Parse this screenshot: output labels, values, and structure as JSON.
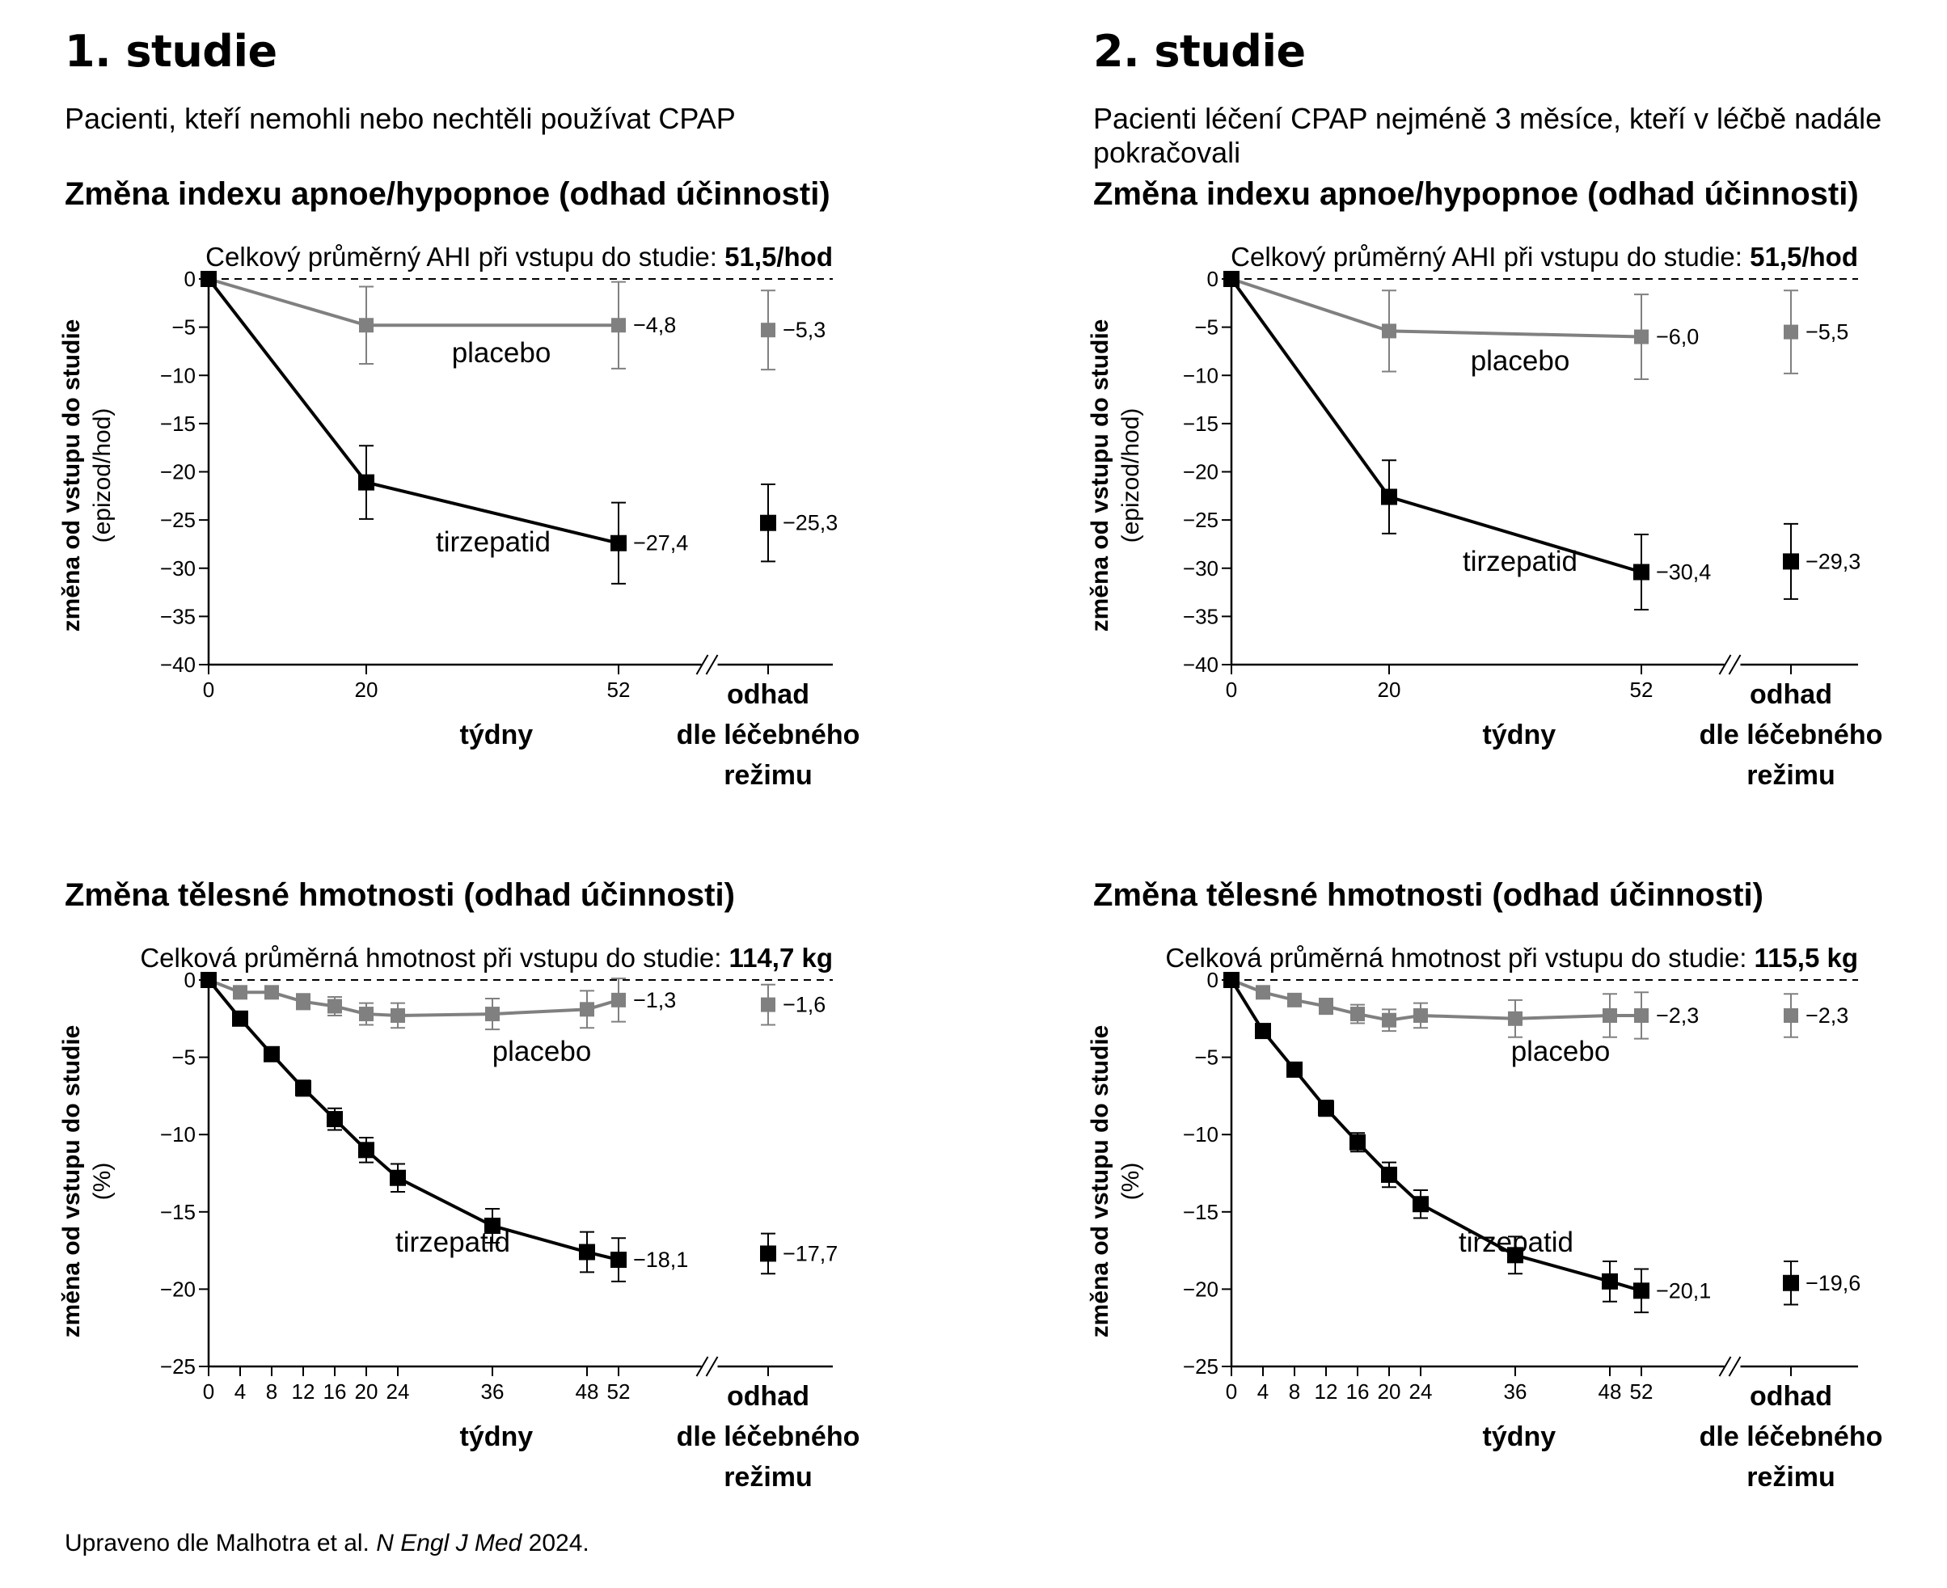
{
  "studies": [
    {
      "title": "1. studie",
      "subtitle": "Pacienti, kteří nemohli nebo nechtěli používat CPAP"
    },
    {
      "title": "2. studie",
      "subtitle": "Pacienti léčení CPAP nejméně 3 měsíce, kteří v léčbě nadále pokračovali"
    }
  ],
  "ahi_title": "Změna indexu apnoe/hypopnoe (odhad účinnosti)",
  "weight_title": "Změna tělesné hmotnosti (odhad účinnosti)",
  "ylabel_main": "změna od vstupu do studie",
  "ahi_unit": "(epizod/hod)",
  "weight_unit": "(%)",
  "footnote": {
    "prefix": "Upraveno dle Malhotra et al.",
    "journal": "N Engl J Med",
    "year": "2024."
  },
  "colors": {
    "tirzepatide": "#000000",
    "placebo": "#808080"
  },
  "chart_data": [
    {
      "type": "line",
      "baseline_label": "Celkový průměrný AHI při vstupu do studie:",
      "baseline_value": "51,5/hod",
      "xlabel": "týdny",
      "estimand_label": [
        "odhad",
        "dle léčebného",
        "režimu"
      ],
      "ylim": [
        -40,
        0
      ],
      "yticks": [
        0,
        -5,
        -10,
        -15,
        -20,
        -25,
        -30,
        -35,
        -40
      ],
      "xticks": [
        0,
        20,
        52
      ],
      "series": [
        {
          "name": "placebo",
          "x": [
            0,
            20,
            52
          ],
          "y": [
            0,
            -4.8,
            -4.8
          ],
          "err": [
            0,
            4.0,
            4.5
          ],
          "end_label": "−4,8",
          "estimand": {
            "y": -5.3,
            "err": 4.1,
            "label": "−5,3"
          }
        },
        {
          "name": "tirzepatid",
          "x": [
            0,
            20,
            52
          ],
          "y": [
            0,
            -21.1,
            -27.4
          ],
          "err": [
            0,
            3.8,
            4.2
          ],
          "end_label": "−27,4",
          "estimand": {
            "y": -25.3,
            "err": 4.0,
            "label": "−25,3"
          }
        }
      ]
    },
    {
      "type": "line",
      "baseline_label": "Celkový průměrný AHI při vstupu do studie:",
      "baseline_value": "51,5/hod",
      "xlabel": "týdny",
      "estimand_label": [
        "odhad",
        "dle léčebného",
        "režimu"
      ],
      "ylim": [
        -40,
        0
      ],
      "yticks": [
        0,
        -5,
        -10,
        -15,
        -20,
        -25,
        -30,
        -35,
        -40
      ],
      "xticks": [
        0,
        20,
        52
      ],
      "series": [
        {
          "name": "placebo",
          "x": [
            0,
            20,
            52
          ],
          "y": [
            0,
            -5.4,
            -6.0
          ],
          "err": [
            0,
            4.2,
            4.4
          ],
          "end_label": "−6,0",
          "estimand": {
            "y": -5.5,
            "err": 4.3,
            "label": "−5,5"
          }
        },
        {
          "name": "tirzepatid",
          "x": [
            0,
            20,
            52
          ],
          "y": [
            0,
            -22.6,
            -30.4
          ],
          "err": [
            0,
            3.8,
            3.9
          ],
          "end_label": "−30,4",
          "estimand": {
            "y": -29.3,
            "err": 3.9,
            "label": "−29,3"
          }
        }
      ]
    },
    {
      "type": "line",
      "baseline_label": "Celková průměrná hmotnost při vstupu do studie:",
      "baseline_value": "114,7 kg",
      "xlabel": "týdny",
      "estimand_label": [
        "odhad",
        "dle léčebného",
        "režimu"
      ],
      "ylim": [
        -25,
        0
      ],
      "yticks": [
        0,
        -5,
        -10,
        -15,
        -20,
        -25
      ],
      "xticks": [
        0,
        4,
        8,
        12,
        16,
        20,
        24,
        36,
        48,
        52
      ],
      "series": [
        {
          "name": "placebo",
          "x": [
            0,
            4,
            8,
            12,
            16,
            20,
            24,
            36,
            48,
            52
          ],
          "y": [
            0,
            -0.8,
            -0.8,
            -1.4,
            -1.7,
            -2.2,
            -2.3,
            -2.2,
            -1.9,
            -1.3
          ],
          "err": [
            0,
            0.4,
            0.4,
            0.5,
            0.6,
            0.7,
            0.8,
            1.0,
            1.2,
            1.4
          ],
          "end_label": "−1,3",
          "estimand": {
            "y": -1.6,
            "err": 1.3,
            "label": "−1,6"
          }
        },
        {
          "name": "tirzepatid",
          "x": [
            0,
            4,
            8,
            12,
            16,
            20,
            24,
            36,
            48,
            52
          ],
          "y": [
            0,
            -2.5,
            -4.8,
            -7.0,
            -9.0,
            -11.0,
            -12.8,
            -15.9,
            -17.6,
            -18.1
          ],
          "err": [
            0,
            0.3,
            0.4,
            0.5,
            0.7,
            0.8,
            0.9,
            1.1,
            1.3,
            1.4
          ],
          "end_label": "−18,1",
          "estimand": {
            "y": -17.7,
            "err": 1.3,
            "label": "−17,7"
          }
        }
      ]
    },
    {
      "type": "line",
      "baseline_label": "Celková průměrná hmotnost při vstupu do studie:",
      "baseline_value": "115,5 kg",
      "xlabel": "týdny",
      "estimand_label": [
        "odhad",
        "dle léčebného",
        "režimu"
      ],
      "ylim": [
        -25,
        0
      ],
      "yticks": [
        0,
        -5,
        -10,
        -15,
        -20,
        -25
      ],
      "xticks": [
        0,
        4,
        8,
        12,
        16,
        20,
        24,
        36,
        48,
        52
      ],
      "series": [
        {
          "name": "placebo",
          "x": [
            0,
            4,
            8,
            12,
            16,
            20,
            24,
            36,
            48,
            52
          ],
          "y": [
            0,
            -0.8,
            -1.3,
            -1.7,
            -2.2,
            -2.6,
            -2.3,
            -2.5,
            -2.3,
            -2.3
          ],
          "err": [
            0,
            0.4,
            0.4,
            0.5,
            0.6,
            0.7,
            0.8,
            1.2,
            1.4,
            1.5
          ],
          "end_label": "−2,3",
          "estimand": {
            "y": -2.3,
            "err": 1.4,
            "label": "−2,3"
          }
        },
        {
          "name": "tirzepatid",
          "x": [
            0,
            4,
            8,
            12,
            16,
            20,
            24,
            36,
            48,
            52
          ],
          "y": [
            0,
            -3.3,
            -5.8,
            -8.3,
            -10.5,
            -12.6,
            -14.5,
            -17.8,
            -19.5,
            -20.1
          ],
          "err": [
            0,
            0.3,
            0.4,
            0.5,
            0.6,
            0.8,
            0.9,
            1.2,
            1.3,
            1.4
          ],
          "end_label": "−20,1",
          "estimand": {
            "y": -19.6,
            "err": 1.4,
            "label": "−19,6"
          }
        }
      ]
    }
  ]
}
